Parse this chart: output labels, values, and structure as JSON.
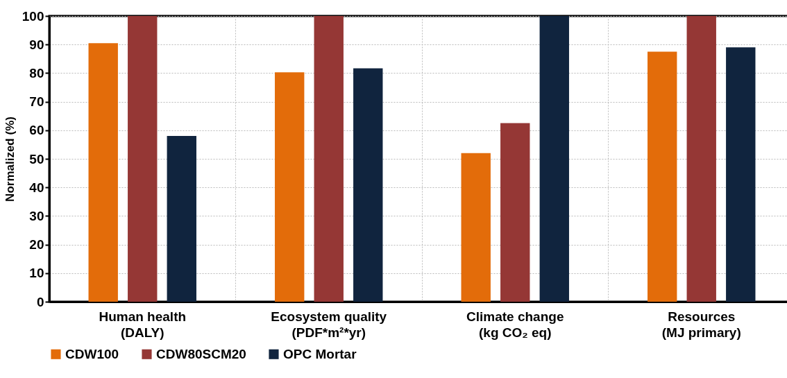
{
  "chart_data": {
    "type": "bar",
    "ylabel": "Normalized (%)",
    "categories": [
      "Human health\n(DALY)",
      "Ecosystem quality\n(PDF*m²*yr)",
      "Climate change\n(kg CO₂ eq)",
      "Resources\n(MJ primary)"
    ],
    "series": [
      {
        "name": "CDW100",
        "color": "#e36c0a",
        "values": [
          90.5,
          80.3,
          52,
          87.5
        ]
      },
      {
        "name": "CDW80SCM20",
        "color": "#953735",
        "values": [
          100,
          100,
          62.5,
          100
        ]
      },
      {
        "name": "OPC Mortar",
        "color": "#10243e",
        "values": [
          58,
          81.7,
          100,
          89
        ]
      }
    ],
    "ylim": [
      0,
      100
    ],
    "yticks": [
      0,
      10,
      20,
      30,
      40,
      50,
      60,
      70,
      80,
      90,
      100
    ],
    "grid": true,
    "legend": "bottom"
  }
}
